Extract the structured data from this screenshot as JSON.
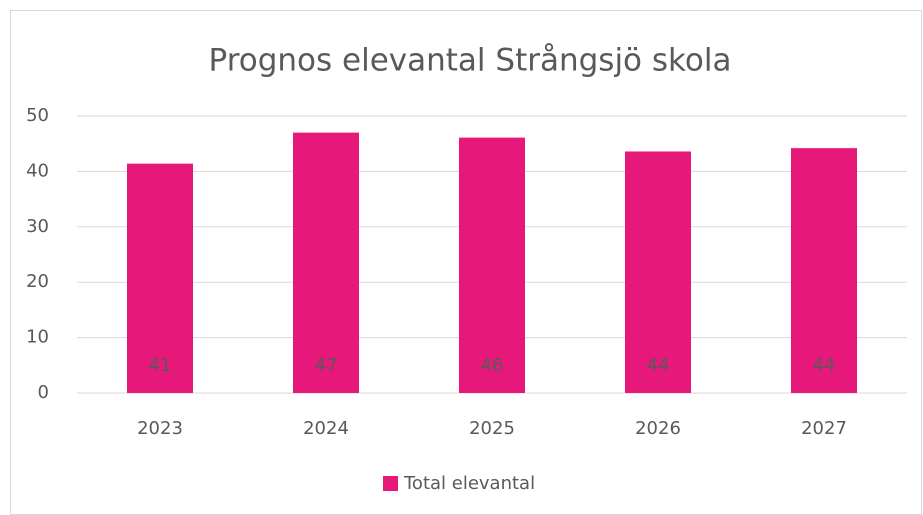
{
  "chart_data": {
    "type": "bar",
    "title": "Prognos elevantal Strångsjö skola",
    "categories": [
      "2023",
      "2024",
      "2025",
      "2026",
      "2027"
    ],
    "series": [
      {
        "name": "Total elevantal",
        "color": "#e6197b",
        "values": [
          41.4,
          47,
          46.1,
          43.6,
          44.2
        ],
        "value_labels": [
          "41",
          "47",
          "46",
          "44",
          "44"
        ]
      }
    ],
    "ylim": [
      0,
      50
    ],
    "yticks": [
      0,
      10,
      20,
      30,
      40,
      50
    ],
    "grid": true,
    "legend": "bottom"
  }
}
